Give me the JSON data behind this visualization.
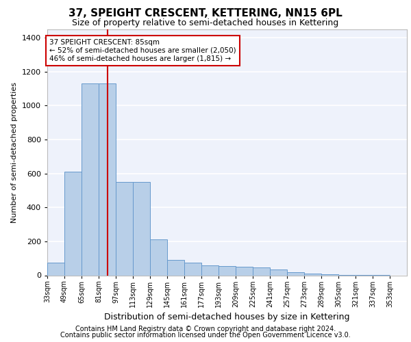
{
  "title": "37, SPEIGHT CRESCENT, KETTERING, NN15 6PL",
  "subtitle": "Size of property relative to semi-detached houses in Kettering",
  "xlabel": "Distribution of semi-detached houses by size in Kettering",
  "ylabel": "Number of semi-detached properties",
  "footer_line1": "Contains HM Land Registry data © Crown copyright and database right 2024.",
  "footer_line2": "Contains public sector information licensed under the Open Government Licence v3.0.",
  "annotation_line1": "37 SPEIGHT CRESCENT: 85sqm",
  "annotation_line2": "← 52% of semi-detached houses are smaller (2,050)",
  "annotation_line3": "46% of semi-detached houses are larger (1,815) →",
  "bar_color": "#b8cfe8",
  "bar_edge_color": "#6699cc",
  "property_line_color": "#cc0000",
  "property_line_x": 89,
  "categories": [
    "33sqm",
    "49sqm",
    "65sqm",
    "81sqm",
    "97sqm",
    "113sqm",
    "129sqm",
    "145sqm",
    "161sqm",
    "177sqm",
    "193sqm",
    "209sqm",
    "225sqm",
    "241sqm",
    "257sqm",
    "273sqm",
    "289sqm",
    "305sqm",
    "321sqm",
    "337sqm",
    "353sqm"
  ],
  "bin_starts": [
    33,
    49,
    65,
    81,
    97,
    113,
    129,
    145,
    161,
    177,
    193,
    209,
    225,
    241,
    257,
    273,
    289,
    305,
    321,
    337,
    353
  ],
  "bin_width": 16,
  "values": [
    75,
    610,
    1130,
    1130,
    550,
    550,
    210,
    90,
    75,
    60,
    55,
    50,
    45,
    35,
    20,
    10,
    5,
    3,
    2,
    1,
    0
  ],
  "ylim": [
    0,
    1450
  ],
  "yticks": [
    0,
    200,
    400,
    600,
    800,
    1000,
    1200,
    1400
  ],
  "background_color": "#eef2fb",
  "grid_color": "#ffffff",
  "title_fontsize": 11,
  "subtitle_fontsize": 9,
  "ylabel_fontsize": 8,
  "xlabel_fontsize": 9,
  "tick_fontsize": 8,
  "xtick_fontsize": 7,
  "footer_fontsize": 7
}
